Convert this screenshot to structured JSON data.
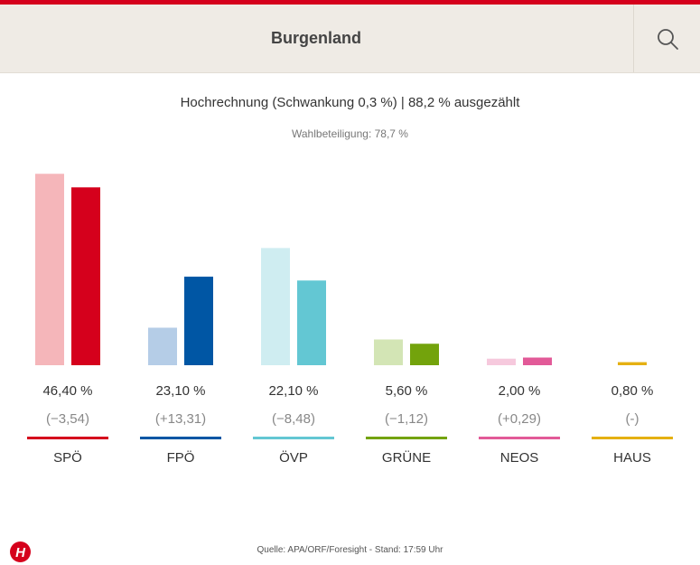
{
  "header": {
    "title": "Burgenland"
  },
  "chart_data": {
    "type": "bar",
    "title": "Hochrechnung (Schwankung 0,3 %) | 88,2 % ausgezählt",
    "subtitle": "Wahlbeteiligung: 78,7 %",
    "categories": [
      "SPÖ",
      "FPÖ",
      "ÖVP",
      "GRÜNE",
      "NEOS",
      "HAUS"
    ],
    "series": [
      {
        "values": [
          49.94,
          9.79,
          30.58,
          6.72,
          1.71,
          0
        ]
      },
      {
        "values": [
          46.4,
          23.1,
          22.1,
          5.6,
          2.0,
          0.8
        ]
      }
    ],
    "value_labels": [
      "46,40 %",
      "23,10 %",
      "22,10 %",
      "5,60 %",
      "2,00 %",
      "0,80 %"
    ],
    "change_labels": [
      "(−3,54)",
      "(+13,31)",
      "(−8,48)",
      "(−1,12)",
      "(+0,29)",
      "(-)"
    ],
    "ylim": [
      0,
      50
    ],
    "colors": {
      "current": [
        "#d5001c",
        "#0056a4",
        "#63c7d3",
        "#73a30c",
        "#e25a98",
        "#e5b012"
      ],
      "previous": [
        "#f5b6ba",
        "#b5cde7",
        "#cfedf1",
        "#d3e5b5",
        "#f6c9dd",
        "#f5e2a6"
      ]
    }
  },
  "footer": {
    "source": "Quelle: APA/ORF/Foresight - Stand: 17:59 Uhr",
    "logo_icon": "h-logo-icon"
  }
}
